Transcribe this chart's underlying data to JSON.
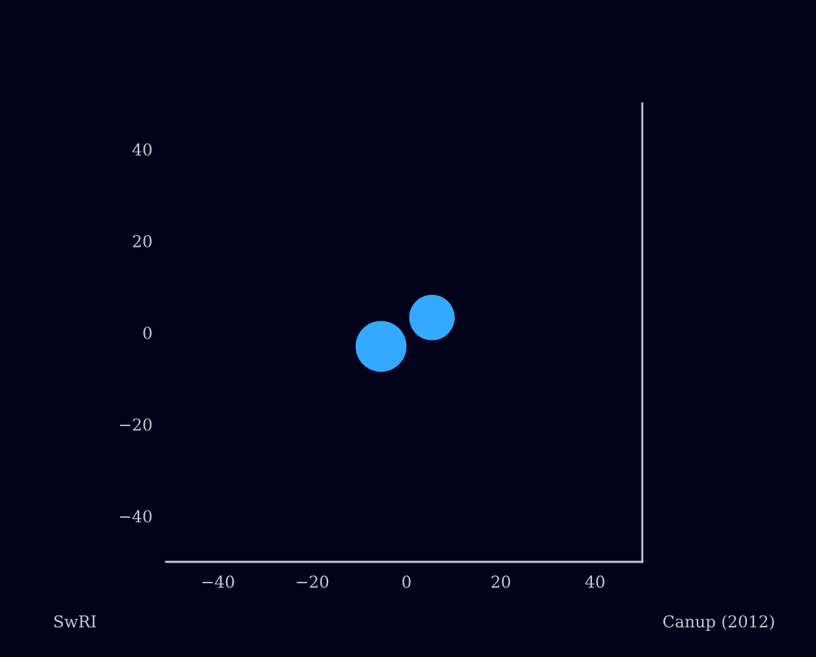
{
  "chart_data": {
    "type": "bubble",
    "x": [
      -5.4,
      5.4
    ],
    "values": [
      -3.0,
      3.3
    ],
    "sizes": [
      1,
      0.8
    ],
    "color": "#33aaff",
    "xlim": [
      -51,
      50
    ],
    "ylim": [
      -50,
      50
    ],
    "xticks": [
      -40,
      -20,
      0,
      20,
      40
    ],
    "yticks": [
      -40,
      -20,
      0,
      20,
      40
    ],
    "grid": false,
    "legend": false,
    "annotations": [
      "SwRI",
      "Canup (2012)"
    ]
  }
}
